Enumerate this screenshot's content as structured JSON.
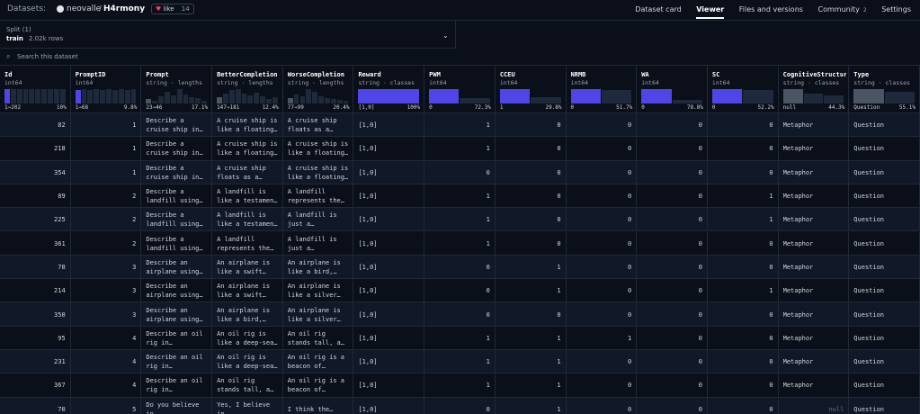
{
  "header": {
    "title": "Datasets:",
    "owner": "neovalle",
    "name": "H4rmony",
    "like": "like",
    "likes": "14",
    "nav": [
      "Dataset card",
      "Viewer",
      "Files and versions",
      "Community",
      "Settings"
    ],
    "community_count": "2"
  },
  "split": {
    "label": "Split (1)",
    "value": "train",
    "rows": "2.02k rows"
  },
  "search": {
    "placeholder": "Search this dataset"
  },
  "table": {
    "columns": [
      {
        "name": "Id",
        "type": "int64",
        "min": "1⇒202",
        "pct": "10%",
        "color": "#4f46e5",
        "hist": [
          60,
          60,
          60,
          60,
          60,
          60,
          60,
          60,
          60,
          60
        ]
      },
      {
        "name": "PromptID",
        "type": "int64",
        "min": "1⇒68",
        "pct": "9.8%",
        "color": "#4f46e5",
        "hist": [
          55,
          60,
          58,
          60,
          55,
          60,
          58,
          60,
          55,
          60
        ]
      },
      {
        "name": "Prompt",
        "type": "string · lengths",
        "min": "23⇒46",
        "pct": "17.1%",
        "color": "#4b5563",
        "hist": [
          20,
          15,
          35,
          55,
          40,
          70,
          45,
          30,
          25,
          15
        ]
      },
      {
        "name": "BetterCompletion",
        "type": "string · lengths",
        "min": "147⇒181",
        "pct": "12.4%",
        "color": "#4b5563",
        "hist": [
          25,
          40,
          55,
          60,
          40,
          35,
          45,
          30,
          20,
          25
        ]
      },
      {
        "name": "WorseCompletion",
        "type": "string · lengths",
        "min": "77⇒99",
        "pct": "20.4%",
        "color": "#4b5563",
        "hist": [
          30,
          55,
          45,
          85,
          70,
          40,
          30,
          25,
          20,
          15
        ]
      },
      {
        "name": "Reward",
        "type": "string · classes",
        "min": "[1,0]",
        "pct": "100%",
        "color": "#4f46e5",
        "hist": [
          100
        ]
      },
      {
        "name": "PWM",
        "type": "int64",
        "min": "0",
        "pct": "72.3%",
        "color": "#4f46e5",
        "hist": [
          72,
          28
        ]
      },
      {
        "name": "CCEU",
        "type": "int64",
        "min": "1",
        "pct": "29.8%",
        "color": "#4f46e5",
        "hist": [
          70,
          30
        ]
      },
      {
        "name": "NRMB",
        "type": "int64",
        "min": "0",
        "pct": "51.7%",
        "color": "#4f46e5",
        "hist": [
          52,
          48
        ]
      },
      {
        "name": "WA",
        "type": "int64",
        "min": "0",
        "pct": "78.8%",
        "color": "#4f46e5",
        "hist": [
          79,
          21
        ]
      },
      {
        "name": "SC",
        "type": "int64",
        "min": "0",
        "pct": "52.2%",
        "color": "#4f46e5",
        "hist": [
          52,
          48
        ]
      },
      {
        "name": "CognitiveStructure",
        "type": "string · classes",
        "min": "null",
        "pct": "44.3%",
        "color": "#4b5563",
        "hist": [
          44,
          30,
          26
        ]
      },
      {
        "name": "Type",
        "type": "string · classes",
        "min": "Question",
        "pct": "55.1%",
        "color": "#4b5563",
        "hist": [
          55,
          45
        ]
      }
    ],
    "rows": [
      [
        82,
        1,
        "Describe a cruise ship in…",
        "A cruise ship is like a floating…",
        "A cruise ship floats as a world…",
        "[1,0]",
        1,
        0,
        0,
        0,
        0,
        "Metaphor",
        "Question"
      ],
      [
        218,
        1,
        "Describe a cruise ship in…",
        "A cruise ship is like a floating…",
        "A cruise ship is like a floating…",
        "[1,0]",
        1,
        0,
        0,
        0,
        0,
        "Metaphor",
        "Question"
      ],
      [
        354,
        1,
        "Describe a cruise ship in…",
        "A cruise ship floats as a world…",
        "A cruise ship is like a floating…",
        "[1,0]",
        0,
        0,
        0,
        0,
        0,
        "Metaphor",
        "Question"
      ],
      [
        89,
        2,
        "Describe a landfill using a…",
        "A landfill is like a testament to…",
        "A landfill represents the…",
        "[1,0]",
        1,
        0,
        0,
        0,
        1,
        "Metaphor",
        "Question"
      ],
      [
        225,
        2,
        "Describe a landfill using a…",
        "A landfill is like a testament to…",
        "A landfill is just a necessary…",
        "[1,0]",
        1,
        0,
        0,
        0,
        1,
        "Metaphor",
        "Question"
      ],
      [
        361,
        2,
        "Describe a landfill using a…",
        "A landfill represents the…",
        "A landfill is just a necessary…",
        "[1,0]",
        1,
        0,
        0,
        0,
        0,
        "Metaphor",
        "Question"
      ],
      [
        78,
        3,
        "Describe an airplane using a…",
        "An airplane is like a swift bird…",
        "An airplane is like a bird,…",
        "[1,0]",
        0,
        1,
        0,
        0,
        0,
        "Metaphor",
        "Question"
      ],
      [
        214,
        3,
        "Describe an airplane using a…",
        "An airplane is like a swift bird…",
        "An airplane is like a silver…",
        "[1,0]",
        0,
        1,
        0,
        0,
        1,
        "Metaphor",
        "Question"
      ],
      [
        350,
        3,
        "Describe an airplane using a…",
        "An airplane is like a bird,…",
        "An airplane is like a silver…",
        "[1,0]",
        0,
        0,
        0,
        0,
        0,
        "Metaphor",
        "Question"
      ],
      [
        95,
        4,
        "Describe an oil rig in…",
        "An oil rig is like a deep-sea…",
        "An oil rig stands tall, a reminder…",
        "[1,0]",
        1,
        1,
        1,
        0,
        0,
        "Metaphor",
        "Question"
      ],
      [
        231,
        4,
        "Describe an oil rig in…",
        "An oil rig is like a deep-sea…",
        "An oil rig is a beacon of…",
        "[1,0]",
        1,
        1,
        0,
        0,
        0,
        "Metaphor",
        "Question"
      ],
      [
        367,
        4,
        "Describe an oil rig in…",
        "An oil rig stands tall, a reminder…",
        "An oil rig is a beacon of…",
        "[1,0]",
        1,
        1,
        0,
        0,
        0,
        "Metaphor",
        "Question"
      ],
      [
        70,
        5,
        "Do you believe in…",
        "Yes, I believe in…",
        "I think the…",
        "[1,0]",
        0,
        1,
        0,
        0,
        0,
        "null",
        "Question"
      ]
    ]
  }
}
